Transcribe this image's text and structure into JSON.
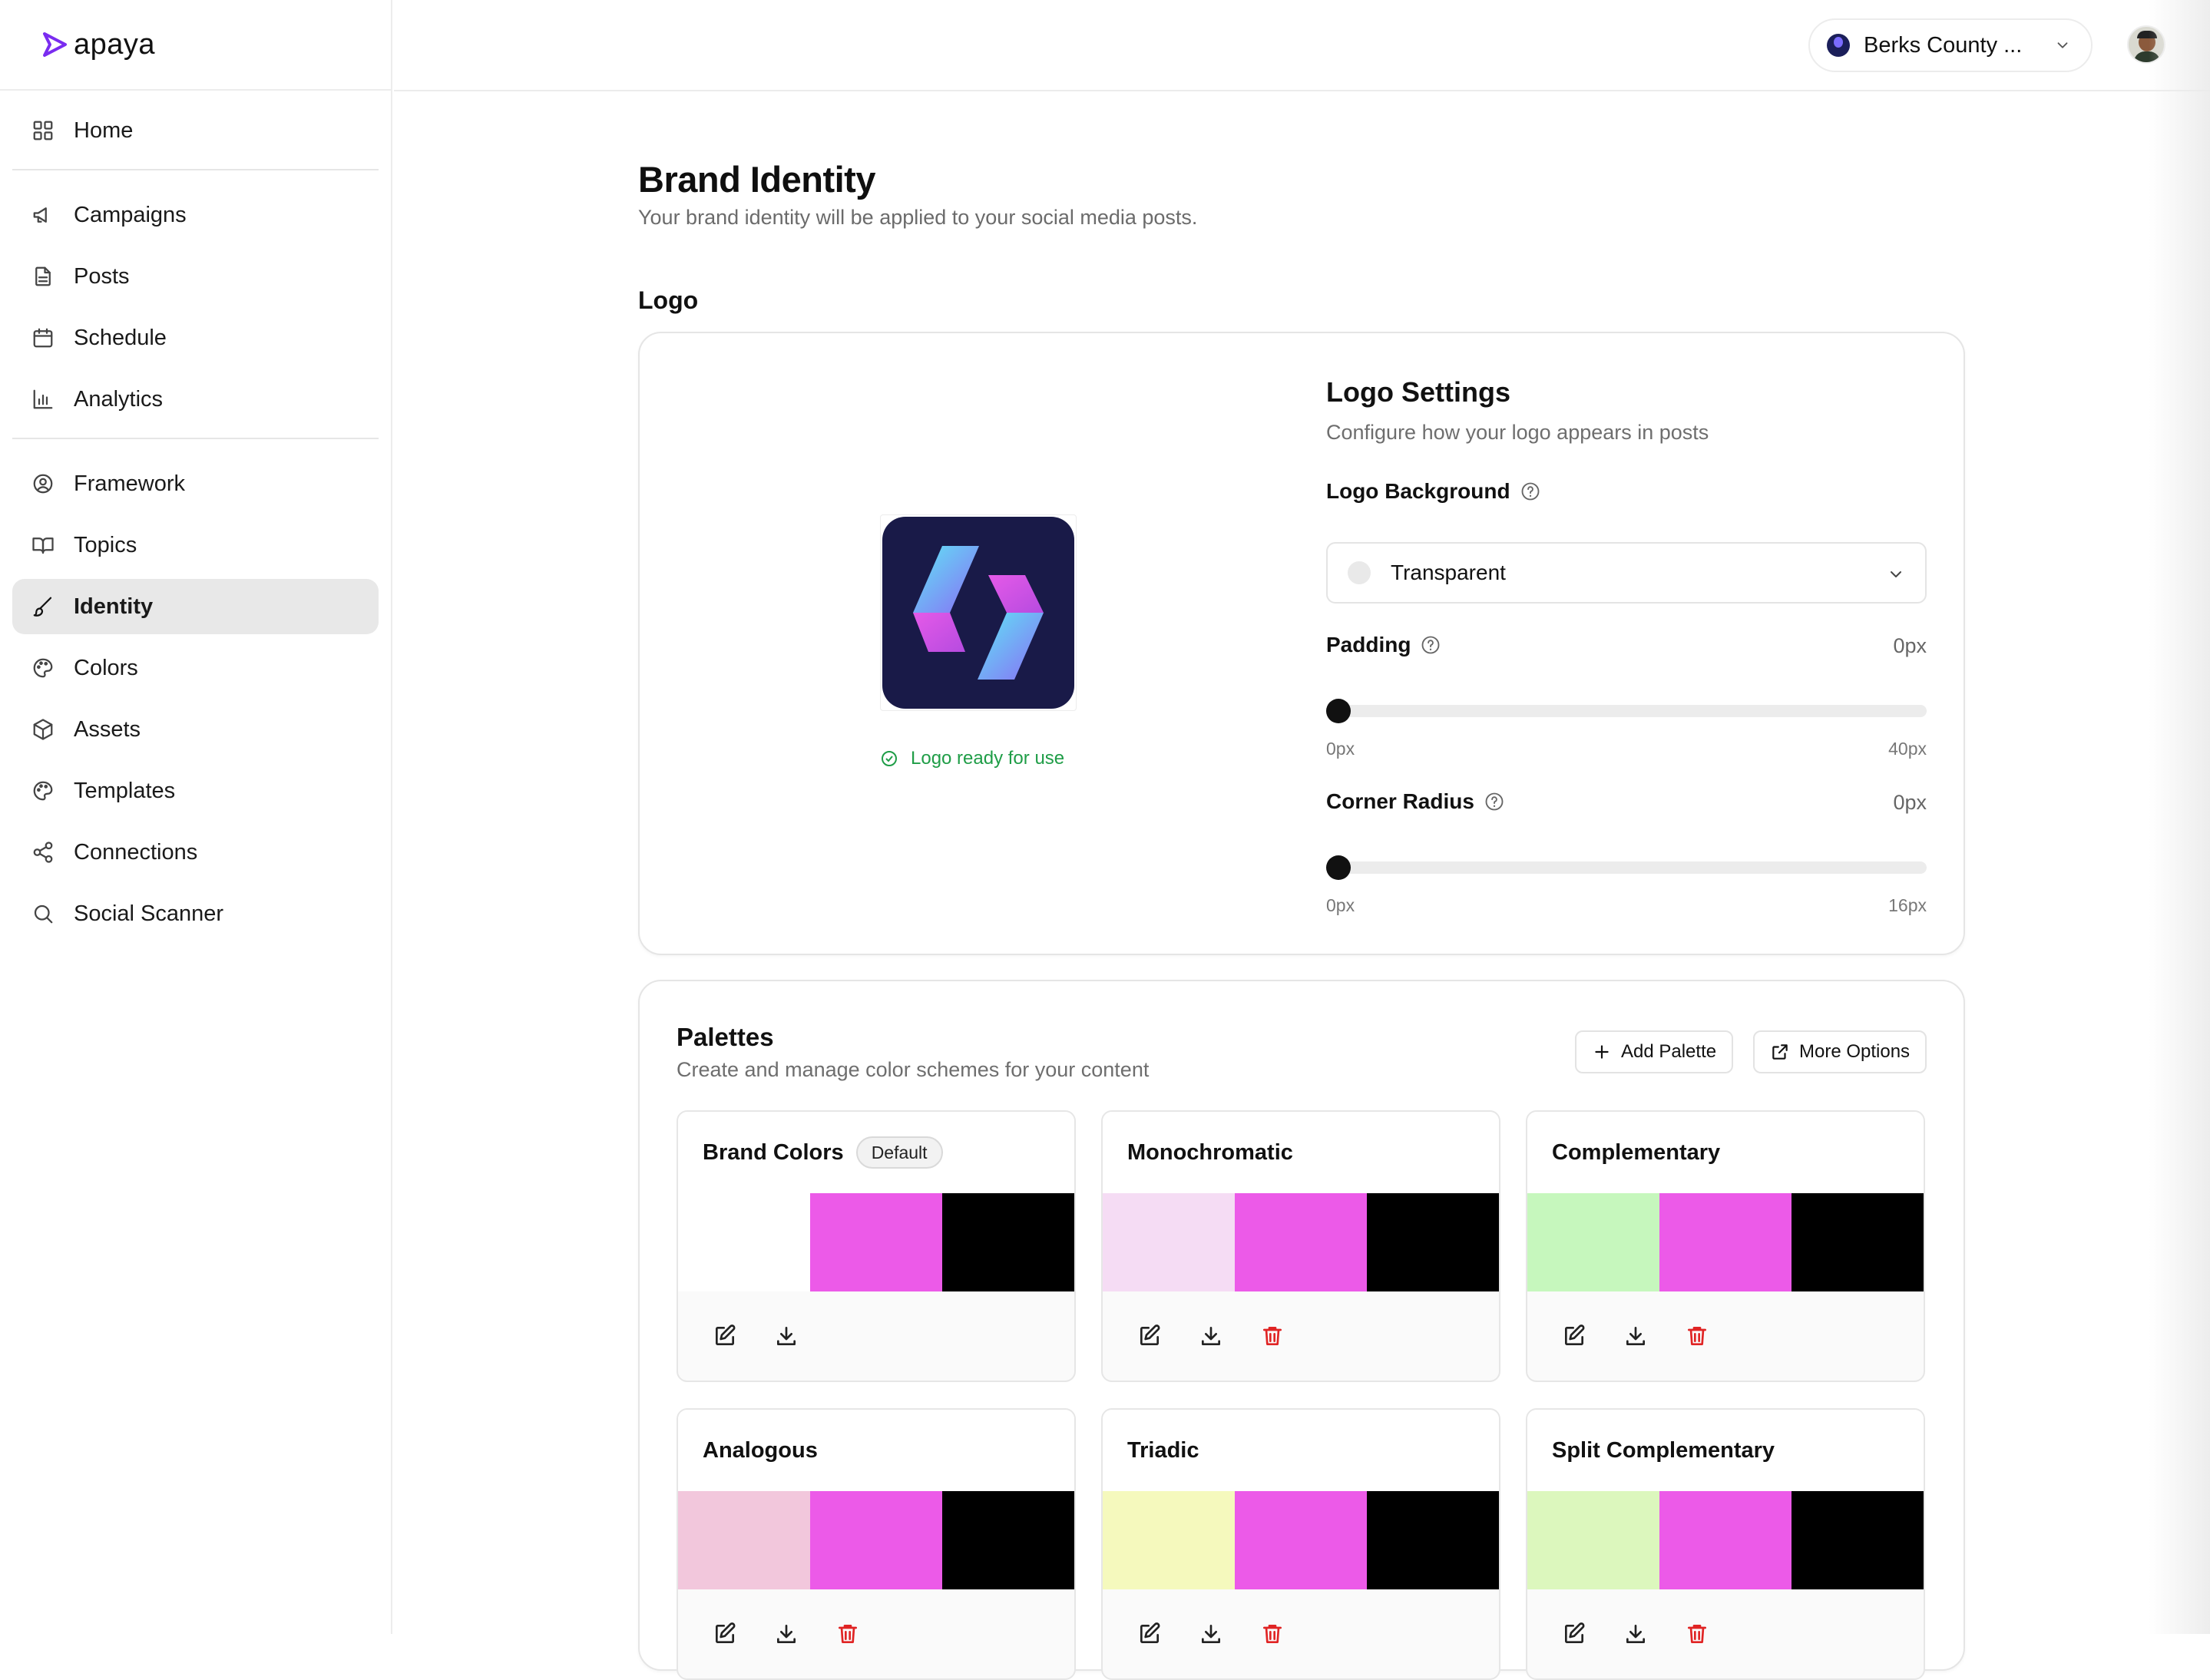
{
  "app": {
    "name": "apaya"
  },
  "sidebar": {
    "items": [
      {
        "label": "Home",
        "icon": "grid-icon"
      },
      {
        "label": "Campaigns",
        "icon": "megaphone-icon"
      },
      {
        "label": "Posts",
        "icon": "document-icon"
      },
      {
        "label": "Schedule",
        "icon": "calendar-icon"
      },
      {
        "label": "Analytics",
        "icon": "bar-chart-icon"
      },
      {
        "label": "Framework",
        "icon": "user-circle-icon"
      },
      {
        "label": "Topics",
        "icon": "book-icon"
      },
      {
        "label": "Identity",
        "icon": "brush-icon",
        "active": true
      },
      {
        "label": "Colors",
        "icon": "palette-icon"
      },
      {
        "label": "Assets",
        "icon": "box-icon"
      },
      {
        "label": "Templates",
        "icon": "palette-icon"
      },
      {
        "label": "Connections",
        "icon": "share-icon"
      },
      {
        "label": "Social Scanner",
        "icon": "search-icon"
      }
    ]
  },
  "topbar": {
    "org_name": "Berks County ..."
  },
  "page": {
    "title": "Brand Identity",
    "subtitle": "Your brand identity will be applied to your social media posts."
  },
  "logo_section": {
    "heading": "Logo",
    "status": "Logo ready for use",
    "settings": {
      "title": "Logo Settings",
      "subtitle": "Configure how your logo appears in posts",
      "background": {
        "label": "Logo Background",
        "value": "Transparent"
      },
      "padding": {
        "label": "Padding",
        "value": "0px",
        "min": "0px",
        "max": "40px",
        "level": 0
      },
      "corner_radius": {
        "label": "Corner Radius",
        "value": "0px",
        "min": "0px",
        "max": "16px",
        "level": 0
      }
    }
  },
  "palettes": {
    "title": "Palettes",
    "subtitle": "Create and manage color schemes for your content",
    "add_button": "Add Palette",
    "more_button": "More Options",
    "items": [
      {
        "name": "Brand Colors",
        "badge": "Default",
        "colors": [
          "#ffffff",
          "#ec5ae8",
          "#000000"
        ],
        "deletable": false
      },
      {
        "name": "Monochromatic",
        "colors": [
          "#f5dcf4",
          "#ec5ae8",
          "#000000"
        ],
        "deletable": true
      },
      {
        "name": "Complementary",
        "colors": [
          "#c6f7bd",
          "#ec5ae8",
          "#000000"
        ],
        "deletable": true
      },
      {
        "name": "Analogous",
        "colors": [
          "#f2c7dc",
          "#ec5ae8",
          "#000000"
        ],
        "deletable": true
      },
      {
        "name": "Triadic",
        "colors": [
          "#f5f9bd",
          "#ec5ae8",
          "#000000"
        ],
        "deletable": true
      },
      {
        "name": "Split Complementary",
        "colors": [
          "#dcf7bd",
          "#ec5ae8",
          "#000000"
        ],
        "deletable": true
      }
    ]
  }
}
